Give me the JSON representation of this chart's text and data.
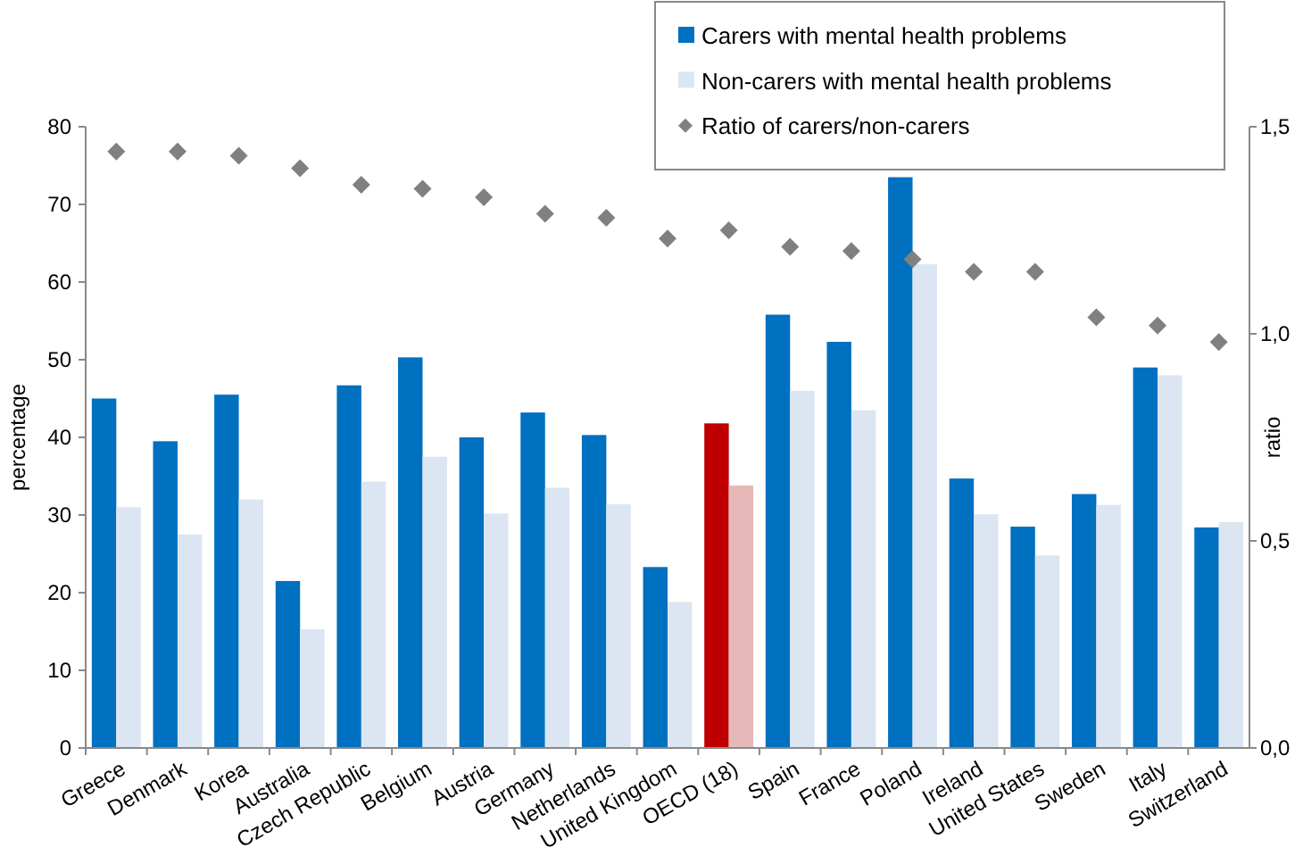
{
  "chart_data": {
    "type": "bar",
    "categories": [
      "Greece",
      "Denmark",
      "Korea",
      "Australia",
      "Czech Republic",
      "Belgium",
      "Austria",
      "Germany",
      "Netherlands",
      "United Kingdom",
      "OECD (18)",
      "Spain",
      "France",
      "Poland",
      "Ireland",
      "United States",
      "Sweden",
      "Italy",
      "Switzerland"
    ],
    "series": [
      {
        "name": "Carers with mental health problems",
        "color": "#0070c0",
        "colors": [
          "#0070c0",
          "#0070c0",
          "#0070c0",
          "#0070c0",
          "#0070c0",
          "#0070c0",
          "#0070c0",
          "#0070c0",
          "#0070c0",
          "#0070c0",
          "#c00000",
          "#0070c0",
          "#0070c0",
          "#0070c0",
          "#0070c0",
          "#0070c0",
          "#0070c0",
          "#0070c0",
          "#0070c0"
        ],
        "values": [
          45,
          39.5,
          45.5,
          21.5,
          46.7,
          50.3,
          40,
          43.2,
          40.3,
          23.3,
          41.8,
          55.8,
          52.3,
          73.5,
          34.7,
          28.5,
          32.7,
          49,
          28.4
        ]
      },
      {
        "name": "Non-carers with mental health problems",
        "color": "#dce6f2",
        "colors": [
          "#dce6f2",
          "#dce6f2",
          "#dce6f2",
          "#dce6f2",
          "#dce6f2",
          "#dce6f2",
          "#dce6f2",
          "#dce6f2",
          "#dce6f2",
          "#dce6f2",
          "#e6b9b8",
          "#dce6f2",
          "#dce6f2",
          "#dce6f2",
          "#dce6f2",
          "#dce6f2",
          "#dce6f2",
          "#dce6f2",
          "#dce6f2"
        ],
        "values": [
          31,
          27.5,
          32,
          15.3,
          34.3,
          37.5,
          30.2,
          33.5,
          31.4,
          18.8,
          33.8,
          46,
          43.5,
          62.3,
          30.1,
          24.8,
          31.3,
          48,
          29.1
        ]
      },
      {
        "name": "Ratio of carers/non-carers",
        "type": "scatter",
        "axis": "y2",
        "marker": "diamond",
        "color": "#808080",
        "values": [
          1.44,
          1.44,
          1.43,
          1.4,
          1.36,
          1.35,
          1.33,
          1.29,
          1.28,
          1.23,
          1.25,
          1.21,
          1.2,
          1.18,
          1.15,
          1.15,
          1.04,
          1.02,
          0.98
        ]
      }
    ],
    "ylabel": "percentage",
    "y2label": "ratio",
    "ylim": [
      0,
      80
    ],
    "yticks": [
      0,
      10,
      20,
      30,
      40,
      50,
      60,
      70,
      80
    ],
    "y2lim": [
      0,
      1.5
    ],
    "y2ticks": [
      {
        "value": 0,
        "label": "0,0"
      },
      {
        "value": 0.5,
        "label": "0,5"
      },
      {
        "value": 1,
        "label": "1,0"
      },
      {
        "value": 1.5,
        "label": "1,5"
      }
    ],
    "legend": "top right",
    "grid": false
  }
}
